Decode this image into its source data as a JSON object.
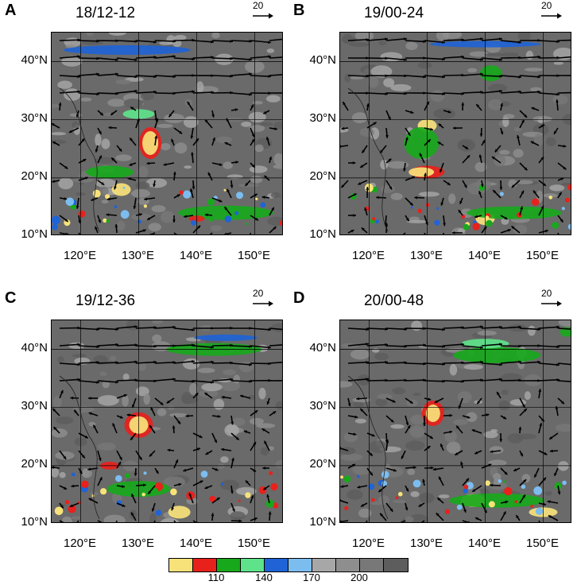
{
  "panels": [
    {
      "letter": "A",
      "time": "18/12-12"
    },
    {
      "letter": "B",
      "time": "19/00-24"
    },
    {
      "letter": "C",
      "time": "19/12-36"
    },
    {
      "letter": "D",
      "time": "20/00-48"
    }
  ],
  "reference_vector": {
    "label": "20"
  },
  "axes": {
    "lat_labels": [
      "40°N",
      "30°N",
      "20°N",
      "10°N"
    ],
    "lon_labels": [
      "120°E",
      "130°E",
      "140°E",
      "150°E"
    ]
  },
  "colorbar": {
    "colors": [
      "#f7e27a",
      "#e8211c",
      "#18a81c",
      "#5ee38a",
      "#1f63d6",
      "#7cbdf0",
      "#a7a7a7",
      "#8e8e8e",
      "#787878",
      "#5d5d5d"
    ],
    "labels": [
      "110",
      "140",
      "170",
      "200"
    ]
  }
}
